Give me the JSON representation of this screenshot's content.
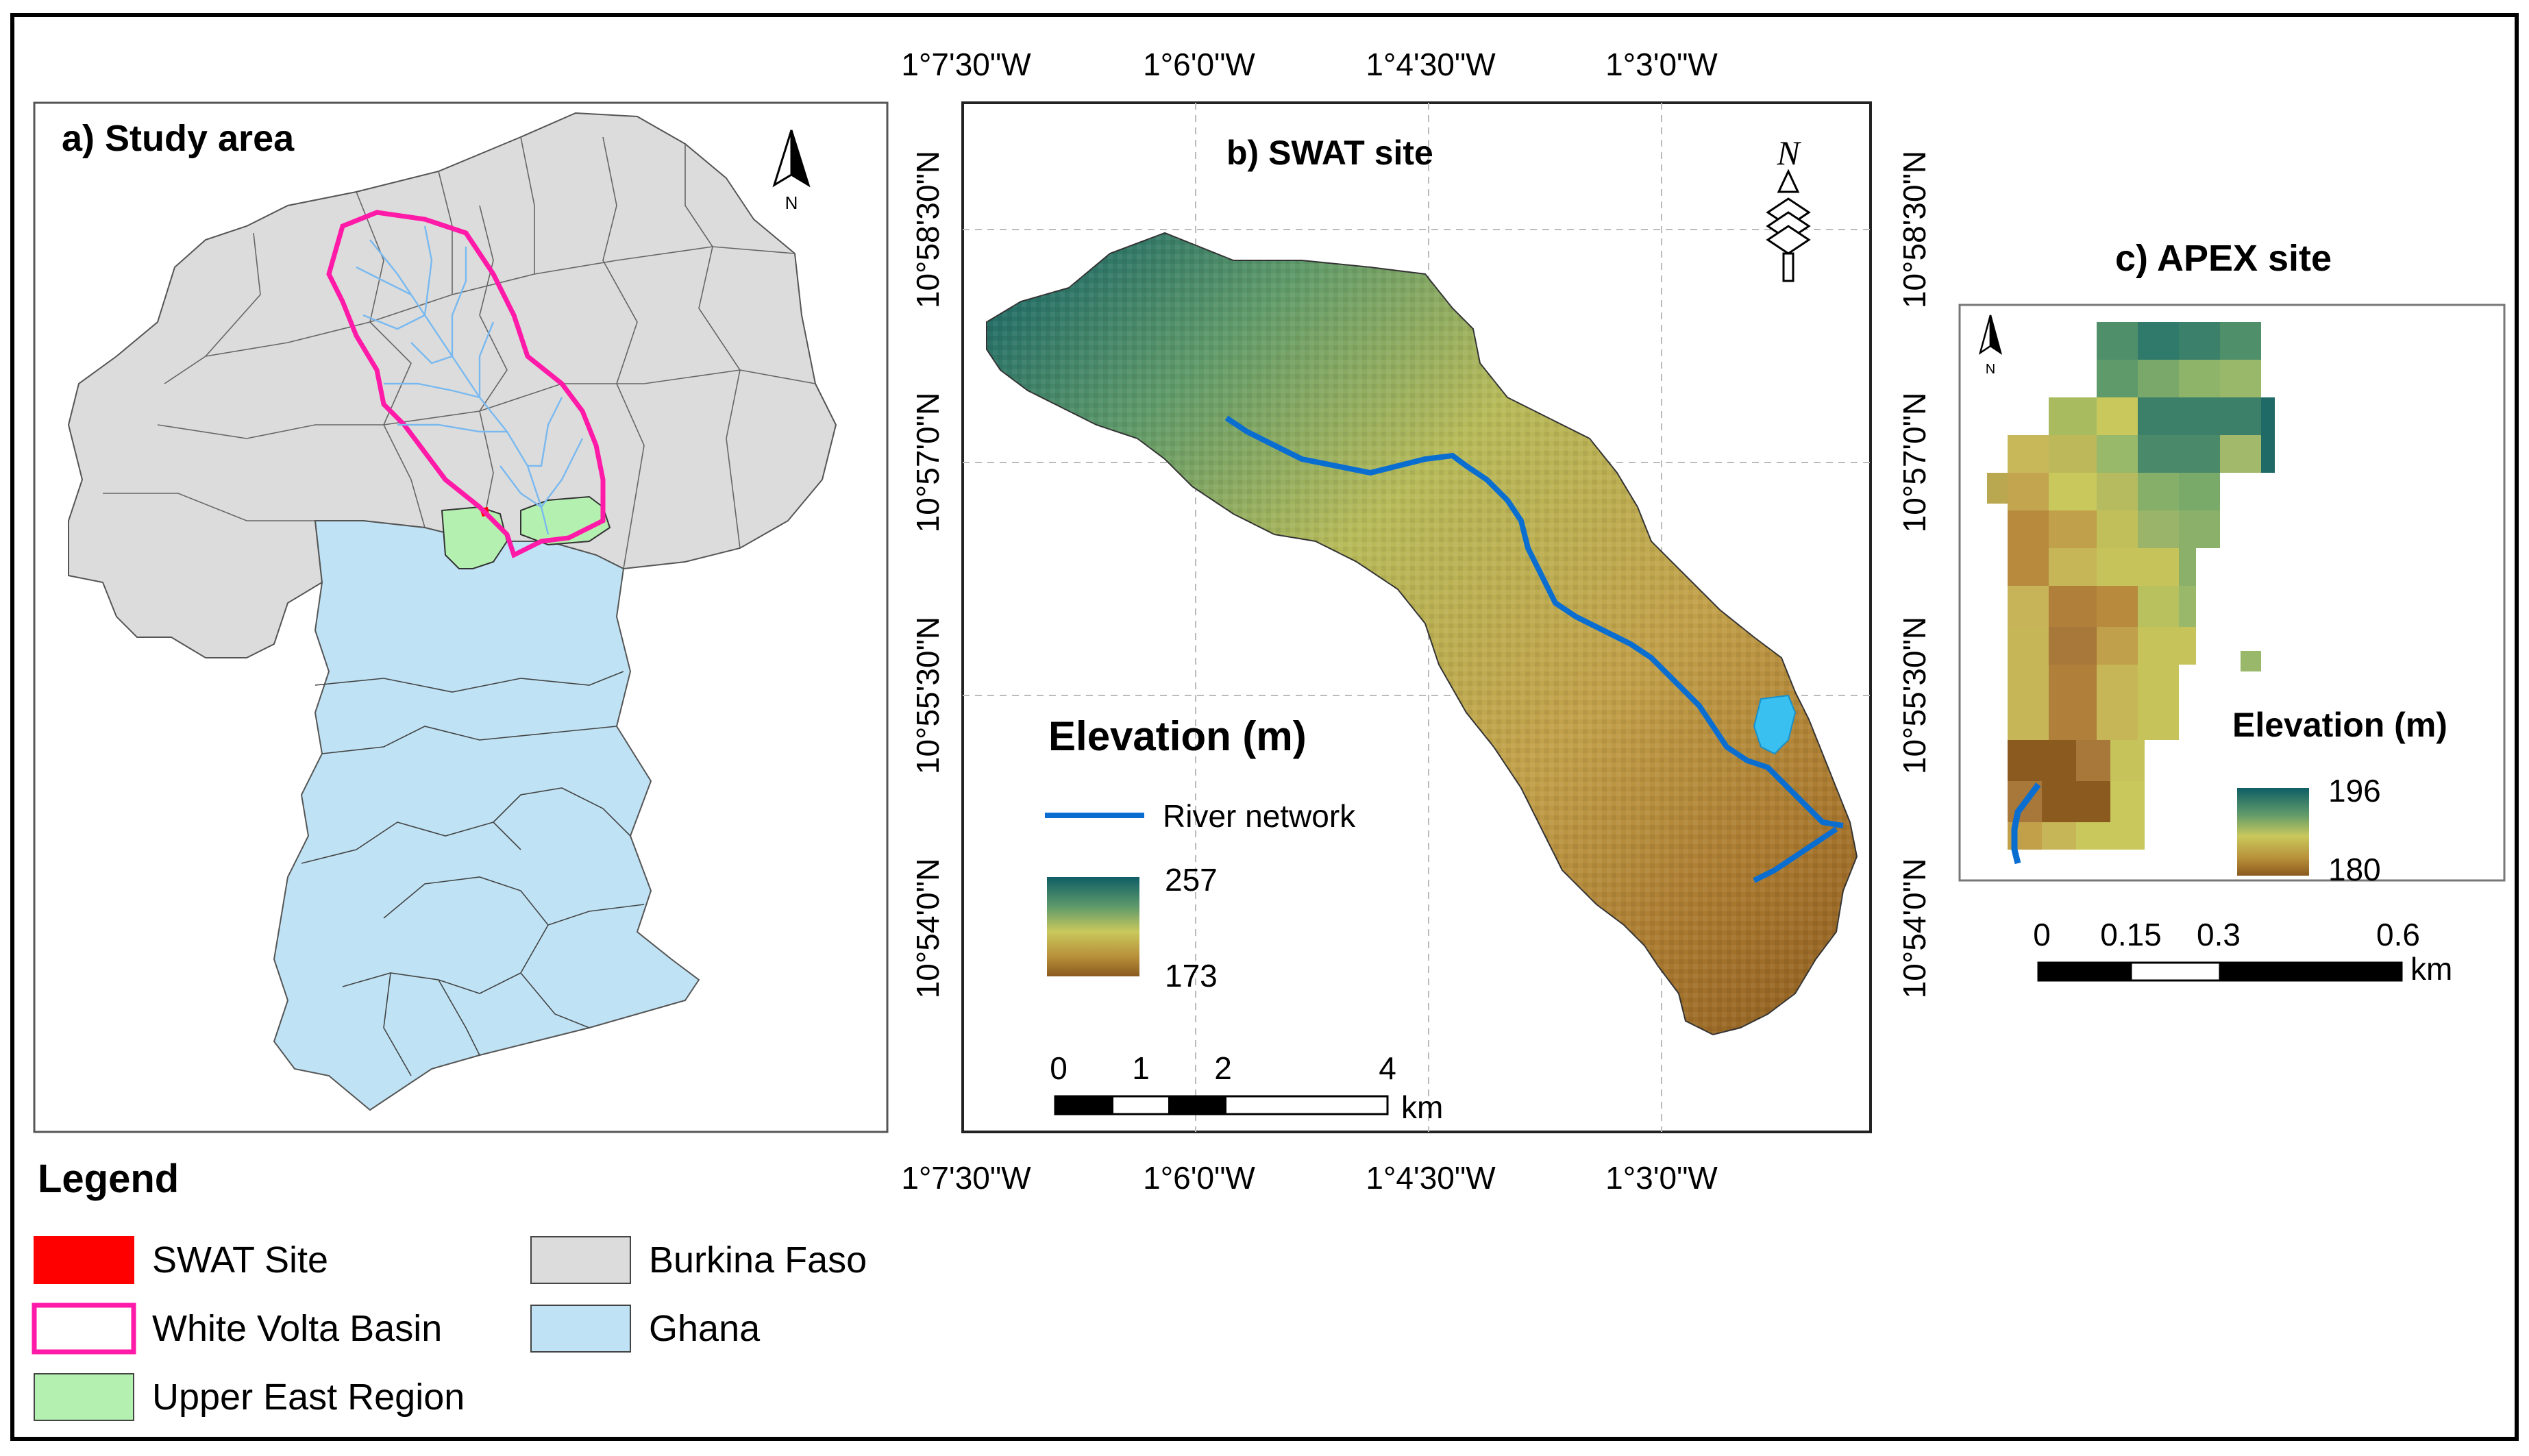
{
  "panel_a": {
    "title": "a) Study area",
    "north_label": "N"
  },
  "panel_b": {
    "title": "b) SWAT site",
    "north_label": "N",
    "lon_ticks": [
      "1°7'30\"W",
      "1°6'0\"W",
      "1°4'30\"W",
      "1°3'0\"W"
    ],
    "lat_ticks": [
      "10°58'30\"N",
      "10°57'0\"N",
      "10°55'30\"N",
      "10°54'0\"N"
    ],
    "legend_title": "Elevation (m)",
    "river_label": "River network",
    "elev_max": "257",
    "elev_min": "173",
    "scale_ticks": [
      "0",
      "1",
      "2",
      "4"
    ],
    "scale_unit": "km"
  },
  "panel_c": {
    "title": "c) APEX site",
    "north_label": "N",
    "legend_title": "Elevation (m)",
    "elev_max": "196",
    "elev_min": "180",
    "scale_ticks": [
      "0",
      "0.15",
      "0.3",
      "0.6"
    ],
    "scale_unit": "km"
  },
  "legend": {
    "title": "Legend",
    "items": [
      {
        "label": "SWAT Site",
        "color": "#ff0000",
        "border": "#ff0000"
      },
      {
        "label": "White Volta Basin",
        "color": "#ffffff",
        "border": "#ff1aa8"
      },
      {
        "label": "Upper East Region",
        "color": "#b4f0b0",
        "border": "#444444"
      },
      {
        "label": "Burkina Faso",
        "color": "#dcdcdc",
        "border": "#444444"
      },
      {
        "label": "Ghana",
        "color": "#bfe3f5",
        "border": "#444444"
      }
    ]
  },
  "colors": {
    "burkina_faso": "#dcdcdc",
    "ghana": "#bfe3f5",
    "upper_east": "#b4f0b0",
    "basin_outline": "#ff1aa8",
    "river": "#0a6ed1",
    "streams": "#79b9f0",
    "swat_site": "#ff0000",
    "elev_high": "#0f5e66",
    "elev_mid": "#c9c85c",
    "elev_low": "#8a5a1e"
  }
}
